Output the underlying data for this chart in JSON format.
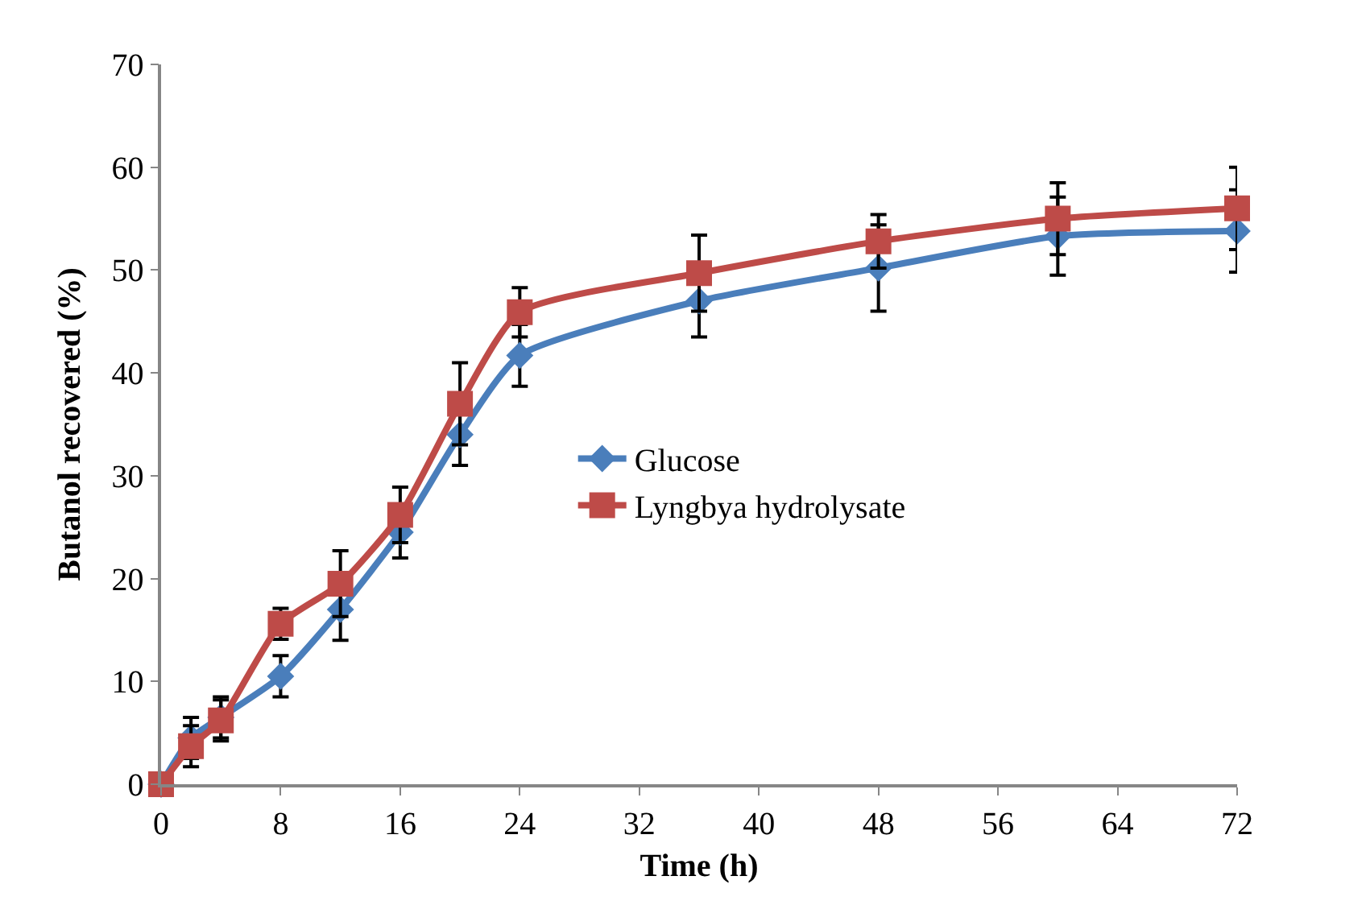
{
  "chart_data": {
    "type": "line",
    "xlabel": "Time (h)",
    "ylabel": "Butanol recovered (%)",
    "x": [
      0,
      2,
      4,
      8,
      12,
      16,
      20,
      24,
      36,
      48,
      60,
      72
    ],
    "series": [
      {
        "name": "Glucose",
        "color": "#4a7ebb",
        "marker": "diamond",
        "values": [
          0,
          4.5,
          6.5,
          10.5,
          17,
          24.5,
          34,
          41.7,
          47,
          50.2,
          53.3,
          53.8
        ],
        "errors": [
          0,
          2,
          2,
          2,
          3,
          2.5,
          3,
          3,
          3.5,
          4.2,
          3.8,
          4
        ]
      },
      {
        "name": "Lyngbya hydrolysate",
        "color": "#be4b48",
        "marker": "square",
        "values": [
          0,
          3.7,
          6.2,
          15.6,
          19.5,
          26.2,
          37,
          45.9,
          49.7,
          52.8,
          55,
          56
        ],
        "errors": [
          0,
          2,
          2,
          1.5,
          3.2,
          2.7,
          4,
          2.4,
          3.7,
          2.6,
          3.5,
          4
        ]
      }
    ],
    "xlim": [
      0,
      72
    ],
    "xticks": [
      0,
      8,
      16,
      24,
      32,
      40,
      48,
      56,
      64,
      72
    ],
    "ylim": [
      0,
      70
    ],
    "yticks": [
      0,
      10,
      20,
      30,
      40,
      50,
      60,
      70
    ],
    "legend": "center",
    "line_style": "solid"
  }
}
